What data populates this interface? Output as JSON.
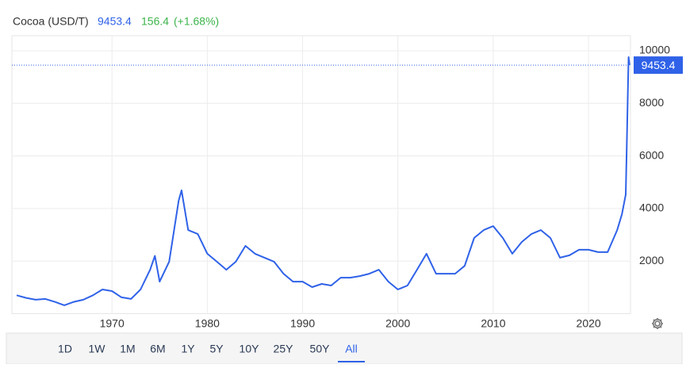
{
  "chart_data": {
    "type": "line",
    "title": "Cocoa (USD/T)",
    "last_value": 9453.4,
    "change": 156.4,
    "change_percent": {
      "value": 1.68,
      "label": "(+1.68%)"
    },
    "color": "#2f62e8",
    "grid": true,
    "x": [
      1960,
      1961,
      1962,
      1963,
      1964,
      1965,
      1966,
      1967,
      1968,
      1969,
      1970,
      1971,
      1972,
      1973,
      1974,
      1974.5,
      1975,
      1976,
      1977,
      1977.3,
      1978,
      1979,
      1980,
      1981,
      1982,
      1983,
      1984,
      1985,
      1986,
      1987,
      1988,
      1989,
      1990,
      1991,
      1992,
      1993,
      1994,
      1995,
      1996,
      1997,
      1998,
      1999,
      2000,
      2001,
      2002,
      2003,
      2004,
      2005,
      2006,
      2007,
      2008,
      2009,
      2010,
      2011,
      2012,
      2013,
      2014,
      2015,
      2016,
      2017,
      2018,
      2019,
      2020,
      2021,
      2022,
      2023,
      2023.5,
      2023.9,
      2024,
      2024.15,
      2024.2,
      2024.3
    ],
    "values": [
      700,
      600,
      530,
      560,
      450,
      320,
      450,
      530,
      700,
      920,
      860,
      620,
      560,
      920,
      1670,
      2200,
      1220,
      1980,
      4300,
      4690,
      3180,
      3030,
      2280,
      1980,
      1670,
      1980,
      2580,
      2280,
      2130,
      1980,
      1520,
      1220,
      1220,
      1010,
      1130,
      1070,
      1370,
      1370,
      1430,
      1520,
      1670,
      1220,
      920,
      1070,
      1670,
      2280,
      1520,
      1520,
      1520,
      1820,
      2880,
      3180,
      3330,
      2880,
      2280,
      2730,
      3030,
      3180,
      2880,
      2130,
      2220,
      2430,
      2430,
      2340,
      2340,
      3180,
      3780,
      4530,
      6200,
      8910,
      9760,
      9453.4
    ],
    "xlim": [
      1959.5,
      2024.4
    ],
    "xticks": [
      1970,
      1980,
      1990,
      2000,
      2010,
      2020
    ],
    "ylim": [
      0,
      10000
    ],
    "yticks": [
      2000,
      4000,
      6000,
      8000,
      10000
    ],
    "range_buttons": [
      "1D",
      "1W",
      "1M",
      "6M",
      "1Y",
      "5Y",
      "10Y",
      "25Y",
      "50Y",
      "All"
    ],
    "selected_range": "All"
  }
}
